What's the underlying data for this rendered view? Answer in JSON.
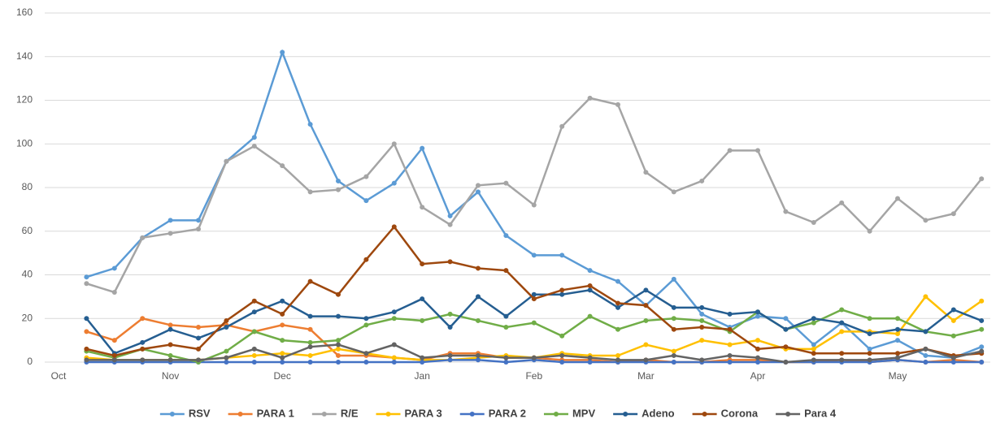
{
  "chart_data": {
    "type": "line",
    "categories": [
      "Oct",
      null,
      null,
      null,
      "Nov",
      null,
      null,
      null,
      "Dec",
      null,
      null,
      null,
      null,
      "Jan",
      null,
      null,
      null,
      "Feb",
      null,
      null,
      null,
      "Mar",
      null,
      null,
      null,
      "Apr",
      null,
      null,
      null,
      null,
      "May",
      null,
      null,
      null
    ],
    "series": [
      {
        "name": "RSV",
        "color": "#5b9bd5",
        "values": [
          null,
          39,
          43,
          57,
          65,
          65,
          92,
          103,
          142,
          109,
          83,
          74,
          82,
          98,
          67,
          78,
          58,
          49,
          49,
          42,
          37,
          26,
          38,
          22,
          16,
          21,
          20,
          8,
          18,
          6,
          10,
          3,
          2,
          7
        ]
      },
      {
        "name": "PARA 1",
        "color": "#ed7d31",
        "values": [
          null,
          14,
          10,
          20,
          17,
          16,
          17,
          14,
          17,
          15,
          3,
          3,
          2,
          1,
          4,
          4,
          2,
          2,
          1,
          1,
          0,
          1,
          0,
          0,
          1,
          1,
          0,
          0,
          1,
          0,
          1,
          0,
          1,
          0
        ]
      },
      {
        "name": "R/E",
        "color": "#a5a5a5",
        "values": [
          null,
          36,
          32,
          57,
          59,
          61,
          92,
          99,
          90,
          78,
          79,
          85,
          100,
          71,
          63,
          81,
          82,
          72,
          108,
          121,
          118,
          87,
          78,
          83,
          97,
          97,
          69,
          64,
          73,
          60,
          75,
          65,
          68,
          84
        ]
      },
      {
        "name": "PARA 3",
        "color": "#ffc000",
        "values": [
          null,
          2,
          1,
          1,
          1,
          1,
          2,
          3,
          4,
          3,
          6,
          4,
          2,
          1,
          1,
          2,
          3,
          2,
          4,
          3,
          3,
          8,
          5,
          10,
          8,
          10,
          6,
          6,
          14,
          14,
          13,
          30,
          19,
          28
        ]
      },
      {
        "name": "PARA 2",
        "color": "#4472c4",
        "values": [
          null,
          0,
          0,
          0,
          0,
          0,
          0,
          0,
          0,
          0,
          0,
          0,
          0,
          0,
          1,
          1,
          0,
          1,
          0,
          0,
          0,
          0,
          0,
          0,
          0,
          0,
          0,
          0,
          0,
          0,
          1,
          0,
          0,
          0
        ]
      },
      {
        "name": "MPV",
        "color": "#70ad47",
        "values": [
          null,
          5,
          2,
          6,
          3,
          0,
          5,
          14,
          10,
          9,
          10,
          17,
          20,
          19,
          22,
          19,
          16,
          18,
          12,
          21,
          15,
          19,
          20,
          19,
          14,
          23,
          15,
          18,
          24,
          20,
          20,
          14,
          12,
          15
        ]
      },
      {
        "name": "Adeno",
        "color": "#255e91",
        "values": [
          null,
          20,
          4,
          9,
          15,
          11,
          16,
          23,
          28,
          21,
          21,
          20,
          23,
          29,
          16,
          30,
          21,
          31,
          31,
          33,
          25,
          33,
          25,
          25,
          22,
          23,
          15,
          20,
          18,
          13,
          15,
          14,
          24,
          19
        ]
      },
      {
        "name": "Corona",
        "color": "#9e480e",
        "values": [
          null,
          6,
          3,
          6,
          8,
          6,
          19,
          28,
          22,
          37,
          31,
          47,
          62,
          45,
          46,
          43,
          42,
          29,
          33,
          35,
          27,
          26,
          15,
          16,
          15,
          6,
          7,
          4,
          4,
          4,
          4,
          6,
          3,
          4
        ]
      },
      {
        "name": "Para 4",
        "color": "#636363",
        "values": [
          null,
          1,
          1,
          1,
          1,
          1,
          2,
          6,
          2,
          7,
          8,
          4,
          8,
          2,
          3,
          3,
          2,
          2,
          3,
          2,
          1,
          1,
          3,
          1,
          3,
          2,
          0,
          1,
          1,
          1,
          2,
          6,
          2,
          5
        ]
      }
    ],
    "ylim": [
      0,
      160
    ],
    "yticks": [
      0,
      20,
      40,
      60,
      80,
      100,
      120,
      140,
      160
    ],
    "grid": true,
    "legend": "bottom"
  }
}
